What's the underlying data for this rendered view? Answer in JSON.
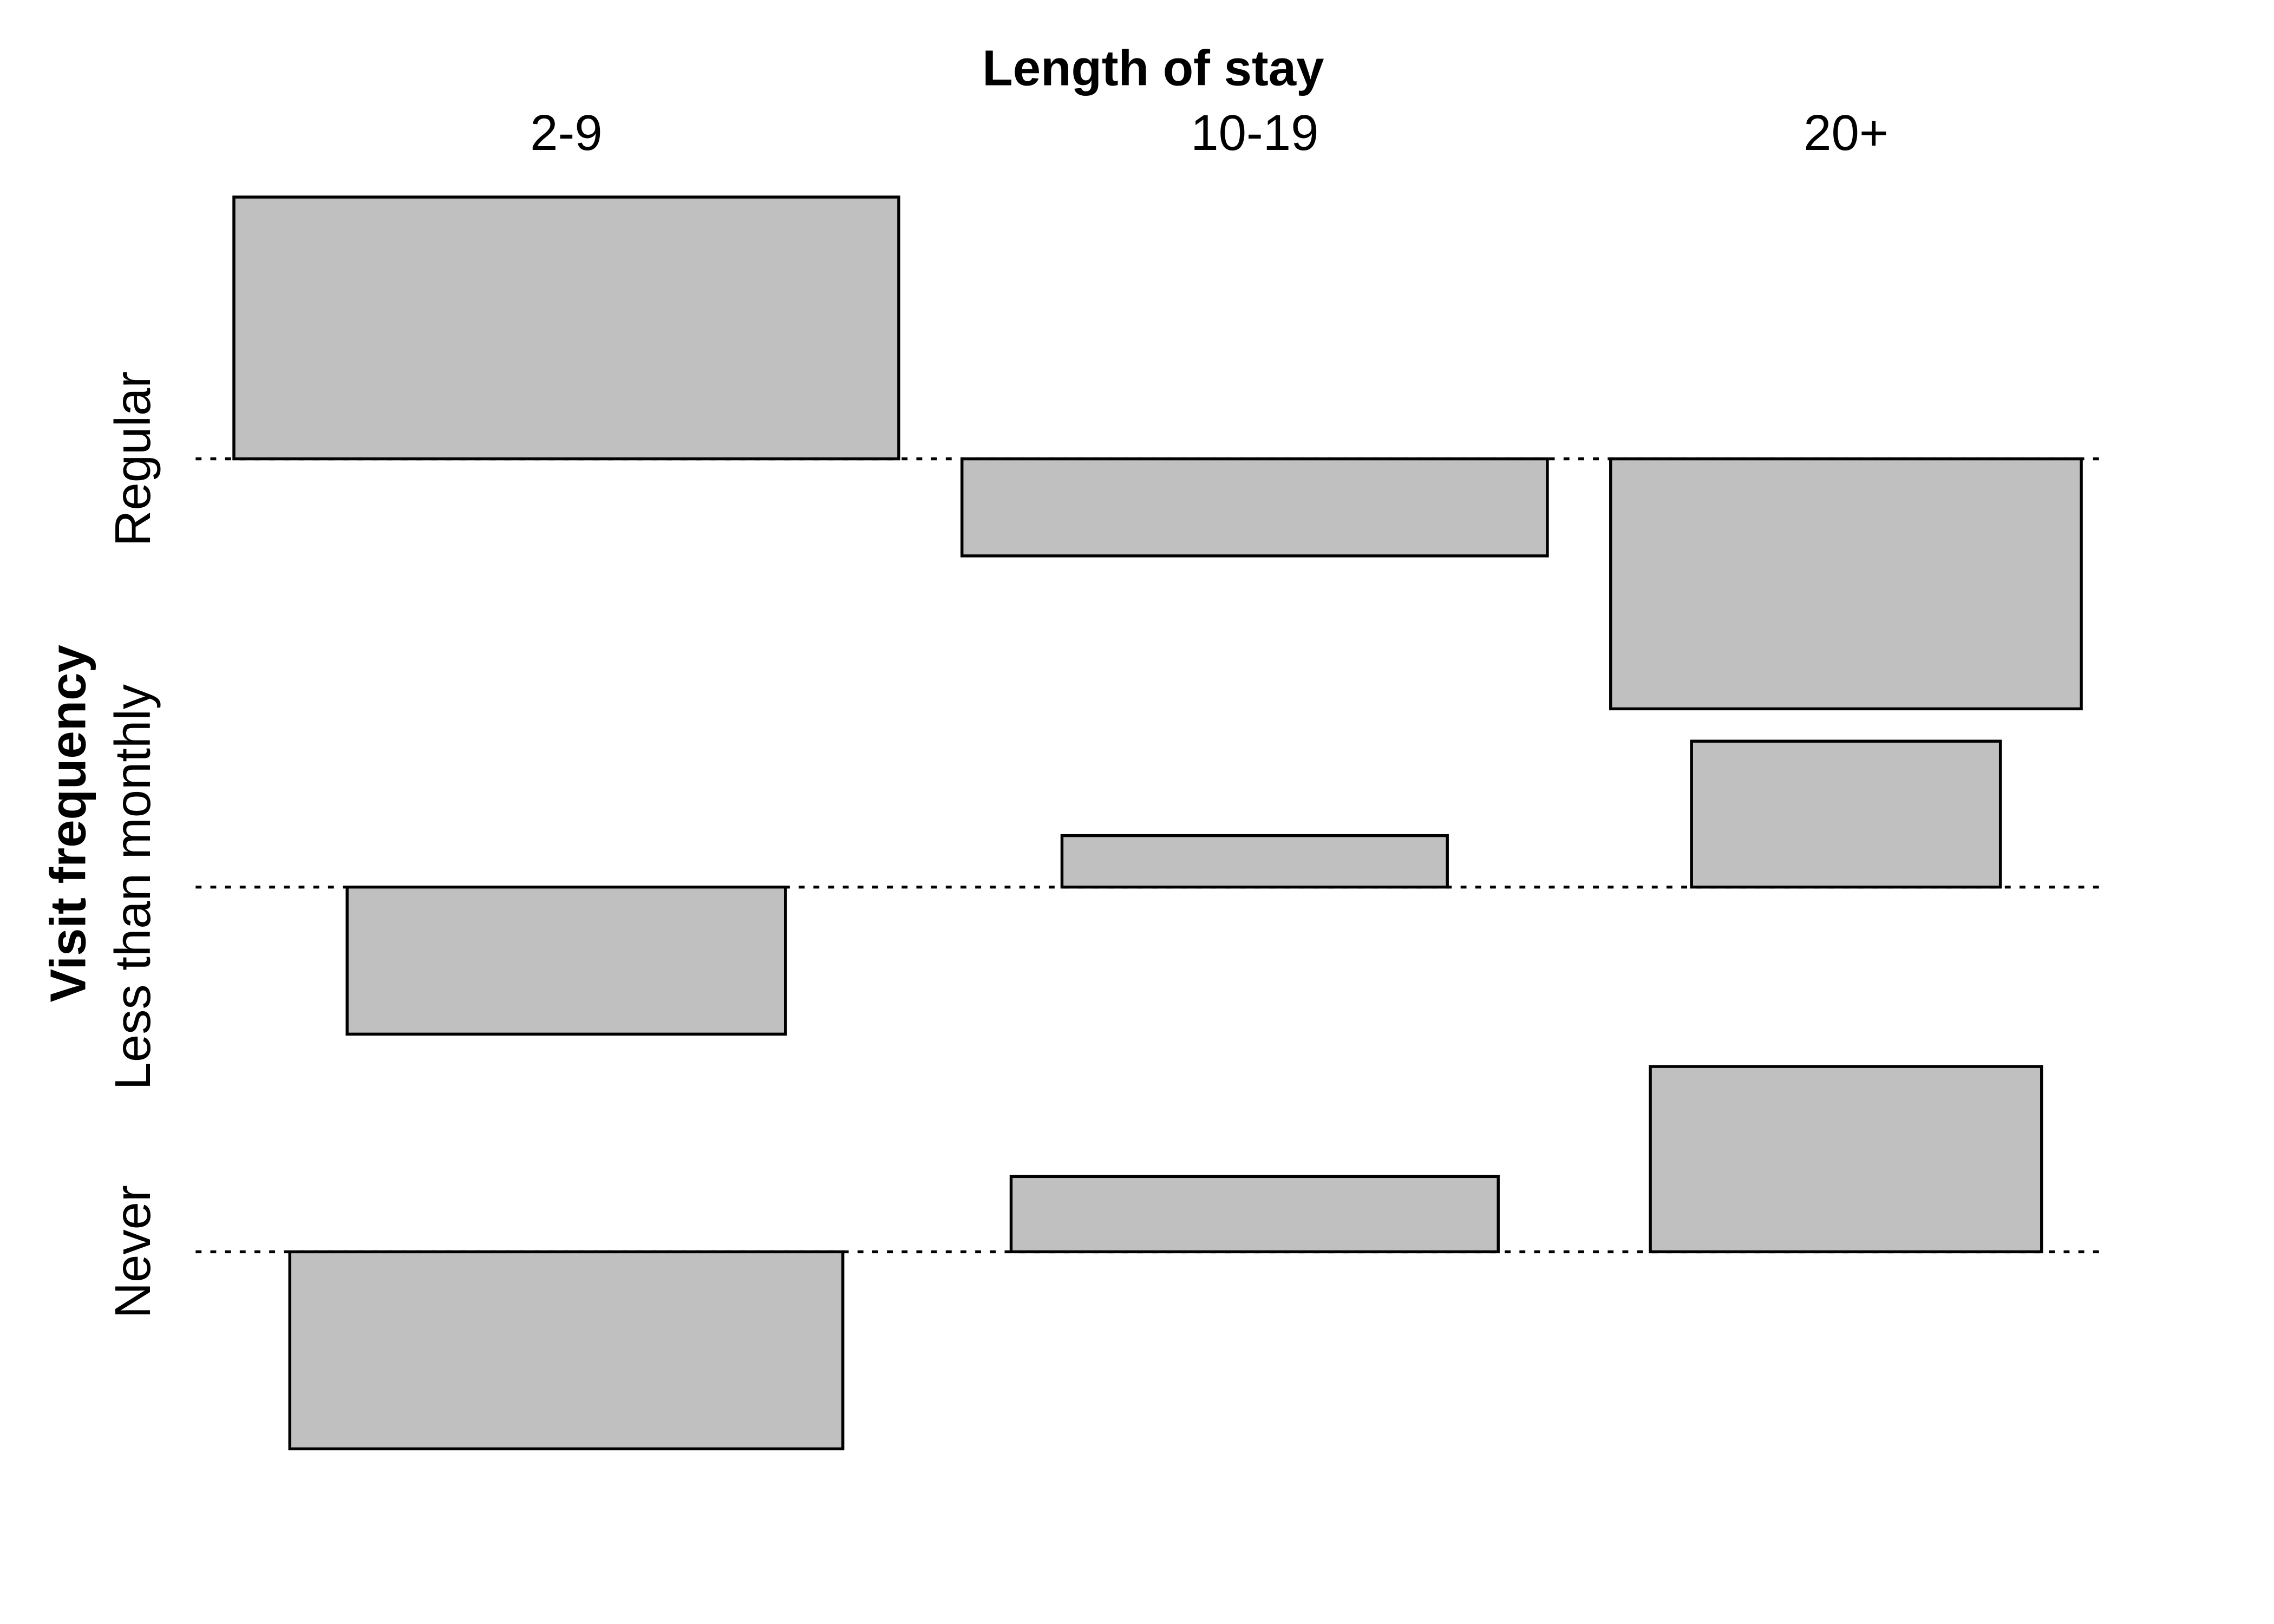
{
  "chart_data": {
    "type": "association",
    "x_label": "Length of stay",
    "y_label": "Visit frequency",
    "categories": [
      "2-9",
      "10-19",
      "20+"
    ],
    "color": "#c0c0c0",
    "series": [
      {
        "name": "Regular",
        "values": [
          4.45,
          -1.65,
          -4.25
        ],
        "widths": [
          11.3,
          9.95,
          8.0
        ]
      },
      {
        "name": "Less than monthly",
        "values": [
          -2.5,
          0.875,
          2.48
        ],
        "widths": [
          7.45,
          6.55,
          5.25
        ]
      },
      {
        "name": "Never",
        "values": [
          -3.35,
          1.28,
          3.15
        ],
        "widths": [
          9.4,
          8.28,
          6.65
        ]
      }
    ]
  }
}
